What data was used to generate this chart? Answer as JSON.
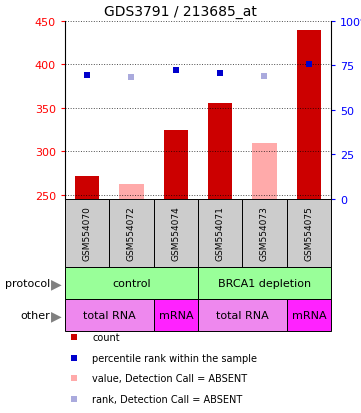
{
  "title": "GDS3791 / 213685_at",
  "samples": [
    "GSM554070",
    "GSM554072",
    "GSM554074",
    "GSM554071",
    "GSM554073",
    "GSM554075"
  ],
  "bar_values": [
    272,
    262,
    325,
    355,
    310,
    440
  ],
  "bar_colors": [
    "#cc0000",
    "#ffaaaa",
    "#cc0000",
    "#cc0000",
    "#ffaaaa",
    "#cc0000"
  ],
  "rank_values": [
    388,
    385,
    393,
    390,
    387,
    400
  ],
  "rank_colors": [
    "#0000cc",
    "#aaaadd",
    "#0000cc",
    "#0000cc",
    "#aaaadd",
    "#0000cc"
  ],
  "ylim_left": [
    245,
    450
  ],
  "yticks_left": [
    250,
    300,
    350,
    400,
    450
  ],
  "yticks_right": [
    0,
    25,
    50,
    75,
    100
  ],
  "protocol_color": "#99ff99",
  "protocol_data": [
    {
      "label": "control",
      "start": 0,
      "end": 2
    },
    {
      "label": "BRCA1 depletion",
      "start": 3,
      "end": 5
    }
  ],
  "other_data": [
    {
      "label": "total RNA",
      "start": 0,
      "end": 1,
      "color": "#ee88ee"
    },
    {
      "label": "mRNA",
      "start": 2,
      "end": 2,
      "color": "#ff22ff"
    },
    {
      "label": "total RNA",
      "start": 3,
      "end": 4,
      "color": "#ee88ee"
    },
    {
      "label": "mRNA",
      "start": 5,
      "end": 5,
      "color": "#ff22ff"
    }
  ],
  "bar_width": 0.55,
  "sample_box_color": "#cccccc",
  "legend_items": [
    {
      "color": "#cc0000",
      "label": "count"
    },
    {
      "color": "#0000cc",
      "label": "percentile rank within the sample"
    },
    {
      "color": "#ffaaaa",
      "label": "value, Detection Call = ABSENT"
    },
    {
      "color": "#aaaadd",
      "label": "rank, Detection Call = ABSENT"
    }
  ],
  "background_color": "#ffffff"
}
